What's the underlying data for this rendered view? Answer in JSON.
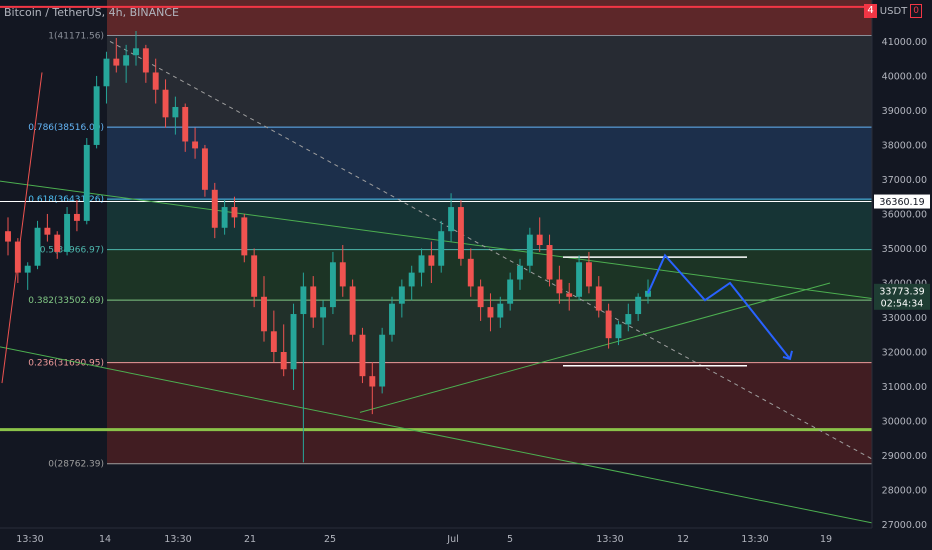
{
  "header": {
    "title": "Bitcoin / TetherUS, 4h, BINANCE",
    "currency": "USDT",
    "alert_count": "4",
    "badge2": "0"
  },
  "colors": {
    "background": "#131722",
    "candle_up": "#26a69a",
    "candle_down": "#ef5350",
    "forecast": "#2962ff",
    "trendline": "#4caf50",
    "axis_text": "#b2b5be",
    "red_line": "#f23645"
  },
  "price_tags": {
    "current_price": "33773.39",
    "countdown": "02:54:34",
    "level_tag": "36360.19"
  },
  "chart_data": {
    "type": "candlestick",
    "title": "Bitcoin / TetherUS, 4h, BINANCE",
    "ylim": [
      26900,
      42200
    ],
    "y_ticks": [
      "41000.00",
      "40000.00",
      "39000.00",
      "38000.00",
      "37000.00",
      "36000.00",
      "35000.00",
      "34000.00",
      "33000.00",
      "32000.00",
      "31000.00",
      "30000.00",
      "29000.00",
      "28000.00",
      "27000.00"
    ],
    "x_ticks": [
      "13:30",
      "14",
      "13:30",
      "21",
      "25",
      "Jul",
      "5",
      "13:30",
      "12",
      "13:30",
      "19"
    ],
    "fibonacci_levels": [
      {
        "ratio": "1",
        "price": 41171.56,
        "label": "1(41171.56)"
      },
      {
        "ratio": "0.786",
        "price": 38516.0,
        "label": "0.786(38516.00)"
      },
      {
        "ratio": "0.618",
        "price": 36431.26,
        "label": "0.618(36431.26)"
      },
      {
        "ratio": "0.5",
        "price": 34966.97,
        "label": "0.5(34966.97)"
      },
      {
        "ratio": "0.382",
        "price": 33502.69,
        "label": "0.382(33502.69)"
      },
      {
        "ratio": "0.236",
        "price": 31690.95,
        "label": "0.236(31690.95)"
      },
      {
        "ratio": "0",
        "price": 28762.39,
        "label": "0(28762.39)"
      }
    ],
    "fib_zones": [
      {
        "from": 41171.56,
        "to": 42200,
        "color": "#6b2a2a"
      },
      {
        "from": 38516.0,
        "to": 41171.56,
        "color": "#2b2f36"
      },
      {
        "from": 36431.26,
        "to": 38516.0,
        "color": "#1f3452"
      },
      {
        "from": 34966.97,
        "to": 36431.26,
        "color": "#173a38"
      },
      {
        "from": 33502.69,
        "to": 34966.97,
        "color": "#1f3a26"
      },
      {
        "from": 31690.95,
        "to": 33502.69,
        "color": "#24352c"
      },
      {
        "from": 28762.39,
        "to": 31690.95,
        "color": "#4a1f22"
      }
    ],
    "horizontal_lines": [
      {
        "price": 42000,
        "color": "#f23645",
        "width": 2
      },
      {
        "price": 36360.19,
        "color": "#ffffff",
        "width": 1
      },
      {
        "price": 29750,
        "color": "#8bc34a",
        "width": 3
      }
    ],
    "candles": [
      [
        35500,
        35900,
        34800,
        35200
      ],
      [
        35200,
        35300,
        34000,
        34300
      ],
      [
        34300,
        34600,
        33800,
        34500
      ],
      [
        34500,
        35800,
        34400,
        35600
      ],
      [
        35600,
        36000,
        35200,
        35400
      ],
      [
        35400,
        35500,
        34700,
        34900
      ],
      [
        34900,
        36200,
        34800,
        36000
      ],
      [
        36000,
        36400,
        35500,
        35800
      ],
      [
        35800,
        38200,
        35700,
        38000
      ],
      [
        38000,
        40000,
        37900,
        39700
      ],
      [
        39700,
        40700,
        39200,
        40500
      ],
      [
        40500,
        41100,
        40100,
        40300
      ],
      [
        40300,
        40900,
        39800,
        40600
      ],
      [
        40600,
        41300,
        40300,
        40800
      ],
      [
        40800,
        40900,
        39800,
        40100
      ],
      [
        40100,
        40500,
        39200,
        39600
      ],
      [
        39600,
        39900,
        38500,
        38800
      ],
      [
        38800,
        39400,
        38300,
        39100
      ],
      [
        39100,
        39200,
        37800,
        38100
      ],
      [
        38100,
        38500,
        37600,
        37900
      ],
      [
        37900,
        38000,
        36500,
        36700
      ],
      [
        36700,
        36900,
        35300,
        35600
      ],
      [
        35600,
        36400,
        35400,
        36200
      ],
      [
        36200,
        36500,
        35600,
        35900
      ],
      [
        35900,
        36000,
        34600,
        34800
      ],
      [
        34800,
        35000,
        33300,
        33600
      ],
      [
        33600,
        34200,
        32300,
        32600
      ],
      [
        32600,
        33200,
        31700,
        32000
      ],
      [
        32000,
        32800,
        31300,
        31500
      ],
      [
        31500,
        33400,
        30900,
        33100
      ],
      [
        33100,
        34300,
        28800,
        33900
      ],
      [
        33900,
        34200,
        32700,
        33000
      ],
      [
        33000,
        33500,
        32200,
        33300
      ],
      [
        33300,
        34900,
        33100,
        34600
      ],
      [
        34600,
        35100,
        33600,
        33900
      ],
      [
        33900,
        34100,
        32300,
        32500
      ],
      [
        32500,
        32700,
        31100,
        31300
      ],
      [
        31300,
        31700,
        30200,
        31000
      ],
      [
        31000,
        32700,
        30800,
        32500
      ],
      [
        32500,
        33600,
        32300,
        33400
      ],
      [
        33400,
        34100,
        33000,
        33900
      ],
      [
        33900,
        34500,
        33500,
        34300
      ],
      [
        34300,
        35000,
        33900,
        34800
      ],
      [
        34800,
        35200,
        34000,
        34500
      ],
      [
        34500,
        35800,
        34300,
        35500
      ],
      [
        35500,
        36600,
        35200,
        36200
      ],
      [
        36200,
        36400,
        34500,
        34700
      ],
      [
        34700,
        35000,
        33600,
        33900
      ],
      [
        33900,
        34100,
        32900,
        33300
      ],
      [
        33300,
        33700,
        32600,
        33000
      ],
      [
        33000,
        33600,
        32700,
        33400
      ],
      [
        33400,
        34300,
        33200,
        34100
      ],
      [
        34100,
        34700,
        33800,
        34500
      ],
      [
        34500,
        35600,
        34300,
        35400
      ],
      [
        35400,
        35900,
        34900,
        35100
      ],
      [
        35100,
        35400,
        33900,
        34100
      ],
      [
        34100,
        34500,
        33400,
        33700
      ],
      [
        33700,
        34000,
        33200,
        33600
      ],
      [
        33600,
        34800,
        33500,
        34600
      ],
      [
        34600,
        34900,
        33700,
        33900
      ],
      [
        33900,
        34200,
        33000,
        33200
      ],
      [
        33200,
        33400,
        32100,
        32400
      ],
      [
        32400,
        32900,
        32200,
        32800
      ],
      [
        32800,
        33400,
        32600,
        33100
      ],
      [
        33100,
        33700,
        32900,
        33600
      ],
      [
        33600,
        34100,
        33400,
        33773.39
      ]
    ]
  }
}
